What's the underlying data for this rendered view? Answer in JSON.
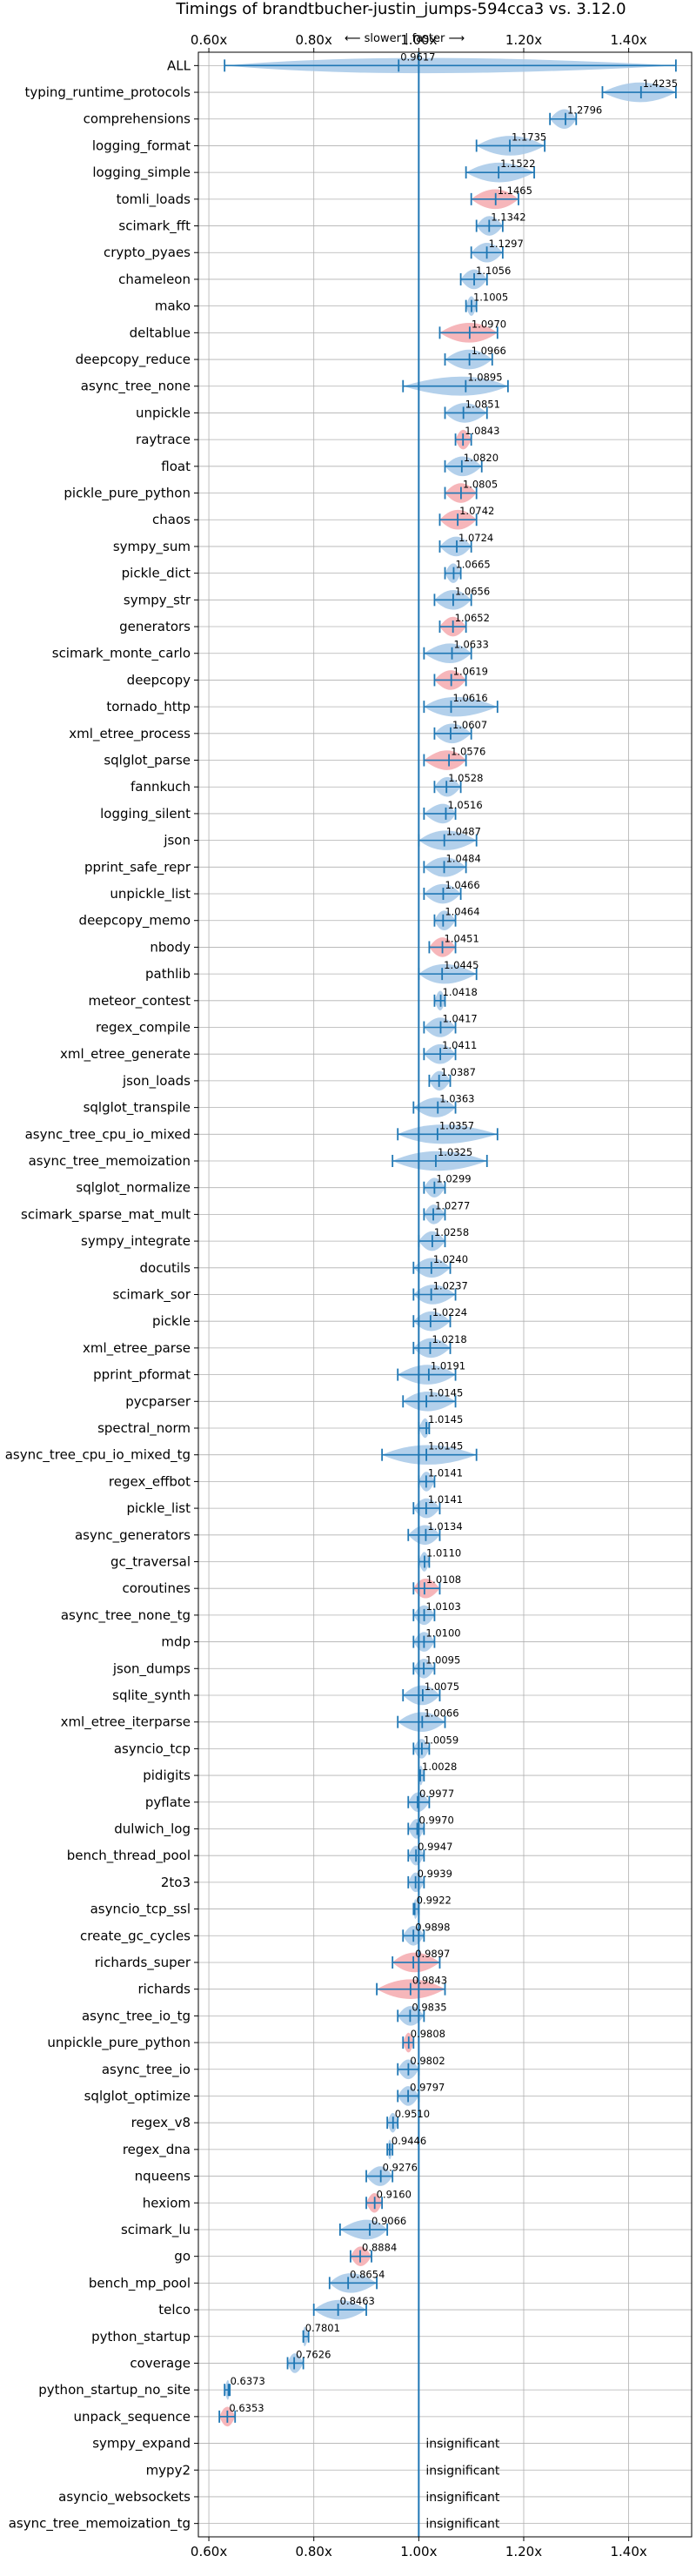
{
  "chart_data": {
    "type": "violin",
    "title": "Timings of brandtbucher-justin_jumps-594cca3 vs. 3.12.0",
    "direction_note": "⟵ slower | faster ⟶",
    "xlim": [
      0.58,
      1.52
    ],
    "x_ticks": [
      0.6,
      0.8,
      1.0,
      1.2,
      1.4
    ],
    "x_tick_labels": [
      "0.60x",
      "0.80x",
      "1.00x",
      "1.20x",
      "1.40x"
    ],
    "reference_x": 1.0,
    "grid": true,
    "colors": {
      "faster": "#a6c8e8",
      "slower": "#f4a9ae",
      "line": "#1f77b4"
    },
    "insignificant_label": "insignificant",
    "benchmarks": [
      {
        "name": "ALL",
        "value": 0.9617,
        "label": "0.9617",
        "min": 0.63,
        "max": 1.49,
        "color": "blue"
      },
      {
        "name": "typing_runtime_protocols",
        "value": 1.4235,
        "label": "1.4235",
        "min": 1.35,
        "max": 1.49,
        "color": "blue"
      },
      {
        "name": "comprehensions",
        "value": 1.2796,
        "label": "1.2796",
        "min": 1.25,
        "max": 1.3,
        "color": "blue"
      },
      {
        "name": "logging_format",
        "value": 1.1735,
        "label": "1.1735",
        "min": 1.11,
        "max": 1.24,
        "color": "blue"
      },
      {
        "name": "logging_simple",
        "value": 1.1522,
        "label": "1.1522",
        "min": 1.09,
        "max": 1.22,
        "color": "blue"
      },
      {
        "name": "tomli_loads",
        "value": 1.1465,
        "label": "1.1465",
        "min": 1.1,
        "max": 1.19,
        "color": "red"
      },
      {
        "name": "scimark_fft",
        "value": 1.1342,
        "label": "1.1342",
        "min": 1.11,
        "max": 1.16,
        "color": "blue"
      },
      {
        "name": "crypto_pyaes",
        "value": 1.1297,
        "label": "1.1297",
        "min": 1.1,
        "max": 1.16,
        "color": "blue"
      },
      {
        "name": "chameleon",
        "value": 1.1056,
        "label": "1.1056",
        "min": 1.08,
        "max": 1.13,
        "color": "blue"
      },
      {
        "name": "mako",
        "value": 1.1005,
        "label": "1.1005",
        "min": 1.09,
        "max": 1.11,
        "color": "blue"
      },
      {
        "name": "deltablue",
        "value": 1.097,
        "label": "1.0970",
        "min": 1.04,
        "max": 1.15,
        "color": "red"
      },
      {
        "name": "deepcopy_reduce",
        "value": 1.0966,
        "label": "1.0966",
        "min": 1.05,
        "max": 1.14,
        "color": "blue"
      },
      {
        "name": "async_tree_none",
        "value": 1.0895,
        "label": "1.0895",
        "min": 0.97,
        "max": 1.17,
        "color": "blue"
      },
      {
        "name": "unpickle",
        "value": 1.0851,
        "label": "1.0851",
        "min": 1.05,
        "max": 1.13,
        "color": "blue"
      },
      {
        "name": "raytrace",
        "value": 1.0843,
        "label": "1.0843",
        "min": 1.07,
        "max": 1.1,
        "color": "red"
      },
      {
        "name": "float",
        "value": 1.082,
        "label": "1.0820",
        "min": 1.05,
        "max": 1.12,
        "color": "blue"
      },
      {
        "name": "pickle_pure_python",
        "value": 1.0805,
        "label": "1.0805",
        "min": 1.05,
        "max": 1.11,
        "color": "red"
      },
      {
        "name": "chaos",
        "value": 1.0742,
        "label": "1.0742",
        "min": 1.04,
        "max": 1.11,
        "color": "red"
      },
      {
        "name": "sympy_sum",
        "value": 1.0724,
        "label": "1.0724",
        "min": 1.04,
        "max": 1.1,
        "color": "blue"
      },
      {
        "name": "pickle_dict",
        "value": 1.0665,
        "label": "1.0665",
        "min": 1.05,
        "max": 1.08,
        "color": "blue"
      },
      {
        "name": "sympy_str",
        "value": 1.0656,
        "label": "1.0656",
        "min": 1.03,
        "max": 1.1,
        "color": "blue"
      },
      {
        "name": "generators",
        "value": 1.0652,
        "label": "1.0652",
        "min": 1.04,
        "max": 1.09,
        "color": "red"
      },
      {
        "name": "scimark_monte_carlo",
        "value": 1.0633,
        "label": "1.0633",
        "min": 1.01,
        "max": 1.1,
        "color": "blue"
      },
      {
        "name": "deepcopy",
        "value": 1.0619,
        "label": "1.0619",
        "min": 1.03,
        "max": 1.09,
        "color": "red"
      },
      {
        "name": "tornado_http",
        "value": 1.0616,
        "label": "1.0616",
        "min": 1.01,
        "max": 1.15,
        "color": "blue"
      },
      {
        "name": "xml_etree_process",
        "value": 1.0607,
        "label": "1.0607",
        "min": 1.03,
        "max": 1.1,
        "color": "blue"
      },
      {
        "name": "sqlglot_parse",
        "value": 1.0576,
        "label": "1.0576",
        "min": 1.01,
        "max": 1.09,
        "color": "red"
      },
      {
        "name": "fannkuch",
        "value": 1.0528,
        "label": "1.0528",
        "min": 1.03,
        "max": 1.08,
        "color": "blue"
      },
      {
        "name": "logging_silent",
        "value": 1.0516,
        "label": "1.0516",
        "min": 1.01,
        "max": 1.07,
        "color": "blue"
      },
      {
        "name": "json",
        "value": 1.0487,
        "label": "1.0487",
        "min": 1.0,
        "max": 1.11,
        "color": "blue"
      },
      {
        "name": "pprint_safe_repr",
        "value": 1.0484,
        "label": "1.0484",
        "min": 1.01,
        "max": 1.09,
        "color": "blue"
      },
      {
        "name": "unpickle_list",
        "value": 1.0466,
        "label": "1.0466",
        "min": 1.01,
        "max": 1.08,
        "color": "blue"
      },
      {
        "name": "deepcopy_memo",
        "value": 1.0464,
        "label": "1.0464",
        "min": 1.03,
        "max": 1.07,
        "color": "blue"
      },
      {
        "name": "nbody",
        "value": 1.0451,
        "label": "1.0451",
        "min": 1.02,
        "max": 1.07,
        "color": "red"
      },
      {
        "name": "pathlib",
        "value": 1.0445,
        "label": "1.0445",
        "min": 1.0,
        "max": 1.11,
        "color": "blue"
      },
      {
        "name": "meteor_contest",
        "value": 1.0418,
        "label": "1.0418",
        "min": 1.03,
        "max": 1.05,
        "color": "blue"
      },
      {
        "name": "regex_compile",
        "value": 1.0417,
        "label": "1.0417",
        "min": 1.01,
        "max": 1.07,
        "color": "blue"
      },
      {
        "name": "xml_etree_generate",
        "value": 1.0411,
        "label": "1.0411",
        "min": 1.01,
        "max": 1.07,
        "color": "blue"
      },
      {
        "name": "json_loads",
        "value": 1.0387,
        "label": "1.0387",
        "min": 1.02,
        "max": 1.06,
        "color": "blue"
      },
      {
        "name": "sqlglot_transpile",
        "value": 1.0363,
        "label": "1.0363",
        "min": 0.99,
        "max": 1.07,
        "color": "blue"
      },
      {
        "name": "async_tree_cpu_io_mixed",
        "value": 1.0357,
        "label": "1.0357",
        "min": 0.96,
        "max": 1.15,
        "color": "blue"
      },
      {
        "name": "async_tree_memoization",
        "value": 1.0325,
        "label": "1.0325",
        "min": 0.95,
        "max": 1.13,
        "color": "blue"
      },
      {
        "name": "sqlglot_normalize",
        "value": 1.0299,
        "label": "1.0299",
        "min": 1.01,
        "max": 1.05,
        "color": "blue"
      },
      {
        "name": "scimark_sparse_mat_mult",
        "value": 1.0277,
        "label": "1.0277",
        "min": 1.01,
        "max": 1.05,
        "color": "blue"
      },
      {
        "name": "sympy_integrate",
        "value": 1.0258,
        "label": "1.0258",
        "min": 1.0,
        "max": 1.05,
        "color": "blue"
      },
      {
        "name": "docutils",
        "value": 1.024,
        "label": "1.0240",
        "min": 0.99,
        "max": 1.06,
        "color": "blue"
      },
      {
        "name": "scimark_sor",
        "value": 1.0237,
        "label": "1.0237",
        "min": 0.99,
        "max": 1.07,
        "color": "blue"
      },
      {
        "name": "pickle",
        "value": 1.0224,
        "label": "1.0224",
        "min": 0.99,
        "max": 1.06,
        "color": "blue"
      },
      {
        "name": "xml_etree_parse",
        "value": 1.0218,
        "label": "1.0218",
        "min": 0.99,
        "max": 1.06,
        "color": "blue"
      },
      {
        "name": "pprint_pformat",
        "value": 1.0191,
        "label": "1.0191",
        "min": 0.96,
        "max": 1.07,
        "color": "blue"
      },
      {
        "name": "pycparser",
        "value": 1.0145,
        "label": "1.0145",
        "min": 0.97,
        "max": 1.07,
        "color": "blue"
      },
      {
        "name": "spectral_norm",
        "value": 1.0145,
        "label": "1.0145",
        "min": 1.0,
        "max": 1.02,
        "color": "blue"
      },
      {
        "name": "async_tree_cpu_io_mixed_tg",
        "value": 1.0145,
        "label": "1.0145",
        "min": 0.93,
        "max": 1.11,
        "color": "blue"
      },
      {
        "name": "regex_effbot",
        "value": 1.0141,
        "label": "1.0141",
        "min": 1.0,
        "max": 1.03,
        "color": "blue"
      },
      {
        "name": "pickle_list",
        "value": 1.0141,
        "label": "1.0141",
        "min": 0.99,
        "max": 1.04,
        "color": "blue"
      },
      {
        "name": "async_generators",
        "value": 1.0134,
        "label": "1.0134",
        "min": 0.98,
        "max": 1.04,
        "color": "blue"
      },
      {
        "name": "gc_traversal",
        "value": 1.011,
        "label": "1.0110",
        "min": 1.0,
        "max": 1.02,
        "color": "blue"
      },
      {
        "name": "coroutines",
        "value": 1.0108,
        "label": "1.0108",
        "min": 0.99,
        "max": 1.04,
        "color": "red"
      },
      {
        "name": "async_tree_none_tg",
        "value": 1.0103,
        "label": "1.0103",
        "min": 0.99,
        "max": 1.03,
        "color": "blue"
      },
      {
        "name": "mdp",
        "value": 1.01,
        "label": "1.0100",
        "min": 0.99,
        "max": 1.03,
        "color": "blue"
      },
      {
        "name": "json_dumps",
        "value": 1.0095,
        "label": "1.0095",
        "min": 0.99,
        "max": 1.03,
        "color": "blue"
      },
      {
        "name": "sqlite_synth",
        "value": 1.0075,
        "label": "1.0075",
        "min": 0.97,
        "max": 1.04,
        "color": "blue"
      },
      {
        "name": "xml_etree_iterparse",
        "value": 1.0066,
        "label": "1.0066",
        "min": 0.96,
        "max": 1.05,
        "color": "blue"
      },
      {
        "name": "asyncio_tcp",
        "value": 1.0059,
        "label": "1.0059",
        "min": 0.99,
        "max": 1.02,
        "color": "blue"
      },
      {
        "name": "pidigits",
        "value": 1.0028,
        "label": "1.0028",
        "min": 1.0,
        "max": 1.01,
        "color": "blue"
      },
      {
        "name": "pyflate",
        "value": 0.9977,
        "label": "0.9977",
        "min": 0.98,
        "max": 1.02,
        "color": "blue"
      },
      {
        "name": "dulwich_log",
        "value": 0.997,
        "label": "0.9970",
        "min": 0.98,
        "max": 1.01,
        "color": "blue"
      },
      {
        "name": "bench_thread_pool",
        "value": 0.9947,
        "label": "0.9947",
        "min": 0.98,
        "max": 1.01,
        "color": "blue"
      },
      {
        "name": "2to3",
        "value": 0.9939,
        "label": "0.9939",
        "min": 0.98,
        "max": 1.01,
        "color": "blue"
      },
      {
        "name": "asyncio_tcp_ssl",
        "value": 0.9922,
        "label": "0.9922",
        "min": 0.99,
        "max": 1.0,
        "color": "blue"
      },
      {
        "name": "create_gc_cycles",
        "value": 0.9898,
        "label": "0.9898",
        "min": 0.97,
        "max": 1.01,
        "color": "blue"
      },
      {
        "name": "richards_super",
        "value": 0.9897,
        "label": "0.9897",
        "min": 0.95,
        "max": 1.04,
        "color": "red"
      },
      {
        "name": "richards",
        "value": 0.9843,
        "label": "0.9843",
        "min": 0.92,
        "max": 1.05,
        "color": "red"
      },
      {
        "name": "async_tree_io_tg",
        "value": 0.9835,
        "label": "0.9835",
        "min": 0.96,
        "max": 1.01,
        "color": "blue"
      },
      {
        "name": "unpickle_pure_python",
        "value": 0.9808,
        "label": "0.9808",
        "min": 0.97,
        "max": 0.99,
        "color": "red"
      },
      {
        "name": "async_tree_io",
        "value": 0.9802,
        "label": "0.9802",
        "min": 0.96,
        "max": 1.0,
        "color": "blue"
      },
      {
        "name": "sqlglot_optimize",
        "value": 0.9797,
        "label": "0.9797",
        "min": 0.96,
        "max": 1.0,
        "color": "blue"
      },
      {
        "name": "regex_v8",
        "value": 0.951,
        "label": "0.9510",
        "min": 0.94,
        "max": 0.96,
        "color": "blue"
      },
      {
        "name": "regex_dna",
        "value": 0.9446,
        "label": "0.9446",
        "min": 0.94,
        "max": 0.95,
        "color": "blue"
      },
      {
        "name": "nqueens",
        "value": 0.9276,
        "label": "0.9276",
        "min": 0.9,
        "max": 0.95,
        "color": "blue"
      },
      {
        "name": "hexiom",
        "value": 0.916,
        "label": "0.9160",
        "min": 0.9,
        "max": 0.93,
        "color": "red"
      },
      {
        "name": "scimark_lu",
        "value": 0.9066,
        "label": "0.9066",
        "min": 0.85,
        "max": 0.94,
        "color": "blue"
      },
      {
        "name": "go",
        "value": 0.8884,
        "label": "0.8884",
        "min": 0.87,
        "max": 0.91,
        "color": "red"
      },
      {
        "name": "bench_mp_pool",
        "value": 0.8654,
        "label": "0.8654",
        "min": 0.83,
        "max": 0.92,
        "color": "blue"
      },
      {
        "name": "telco",
        "value": 0.8463,
        "label": "0.8463",
        "min": 0.8,
        "max": 0.9,
        "color": "blue"
      },
      {
        "name": "python_startup",
        "value": 0.7801,
        "label": "0.7801",
        "min": 0.78,
        "max": 0.79,
        "color": "blue"
      },
      {
        "name": "coverage",
        "value": 0.7626,
        "label": "0.7626",
        "min": 0.75,
        "max": 0.78,
        "color": "blue"
      },
      {
        "name": "python_startup_no_site",
        "value": 0.6373,
        "label": "0.6373",
        "min": 0.63,
        "max": 0.64,
        "color": "blue"
      },
      {
        "name": "unpack_sequence",
        "value": 0.6353,
        "label": "0.6353",
        "min": 0.62,
        "max": 0.65,
        "color": "red"
      },
      {
        "name": "sympy_expand",
        "insignificant": true
      },
      {
        "name": "mypy2",
        "insignificant": true
      },
      {
        "name": "asyncio_websockets",
        "insignificant": true
      },
      {
        "name": "async_tree_memoization_tg",
        "insignificant": true
      }
    ]
  }
}
